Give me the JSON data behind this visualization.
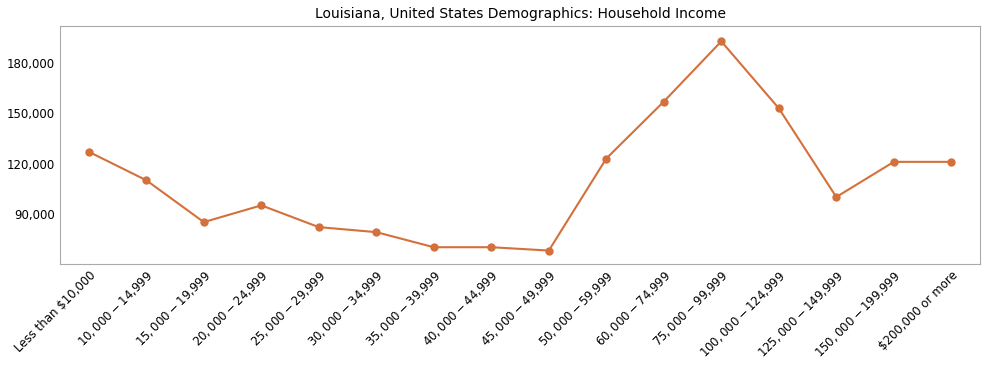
{
  "title": "Louisiana, United States Demographics: Household Income",
  "categories": [
    "Less than $10,000",
    "$10,000 - $14,999",
    "$15,000 - $19,999",
    "$20,000 - $24,999",
    "$25,000 - $29,999",
    "$30,000 - $34,999",
    "$35,000 - $39,999",
    "$40,000 - $44,999",
    "$45,000 - $49,999",
    "$50,000 - $59,999",
    "$60,000 - $74,999",
    "$75,000 - $99,999",
    "$100,000 - $124,999",
    "$125,000 - $149,999",
    "$150,000 - $199,999",
    "$200,000 or more"
  ],
  "values": [
    127000,
    110000,
    85000,
    95000,
    82000,
    79000,
    70000,
    70000,
    68000,
    123000,
    157000,
    193000,
    153000,
    100000,
    121000,
    121000
  ],
  "line_color": "#d4703b",
  "marker": "o",
  "marker_size": 5,
  "linewidth": 1.5,
  "background_color": "#ffffff",
  "ylim": [
    60000,
    202000
  ],
  "yticks": [
    90000,
    120000,
    150000,
    180000
  ],
  "title_fontsize": 10,
  "spine_color": "#aaaaaa",
  "tick_fontsize": 8.5
}
